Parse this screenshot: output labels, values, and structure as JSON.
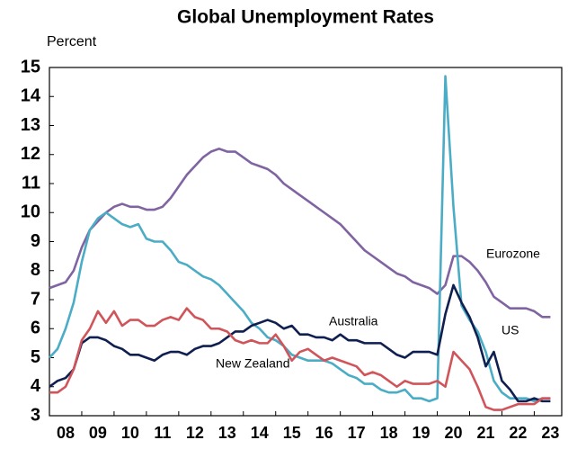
{
  "chart_data": {
    "type": "line",
    "title": "Global Unemployment Rates",
    "y_label": "Percent",
    "x": [
      2008,
      2008.25,
      2008.5,
      2008.75,
      2009,
      2009.25,
      2009.5,
      2009.75,
      2010,
      2010.25,
      2010.5,
      2010.75,
      2011,
      2011.25,
      2011.5,
      2011.75,
      2012,
      2012.25,
      2012.5,
      2012.75,
      2013,
      2013.25,
      2013.5,
      2013.75,
      2014,
      2014.25,
      2014.5,
      2014.75,
      2015,
      2015.25,
      2015.5,
      2015.75,
      2016,
      2016.25,
      2016.5,
      2016.75,
      2017,
      2017.25,
      2017.5,
      2017.75,
      2018,
      2018.25,
      2018.5,
      2018.75,
      2019,
      2019.25,
      2019.5,
      2019.75,
      2020,
      2020.25,
      2020.5,
      2020.75,
      2021,
      2021.25,
      2021.5,
      2021.75,
      2022,
      2022.25,
      2022.5,
      2022.75,
      2023,
      2023.25,
      2023.5
    ],
    "series": [
      {
        "name": "Eurozone",
        "color": "#8064a2",
        "values": [
          7.4,
          7.5,
          7.6,
          8.0,
          8.8,
          9.4,
          9.7,
          10.0,
          10.2,
          10.3,
          10.2,
          10.2,
          10.1,
          10.1,
          10.2,
          10.5,
          10.9,
          11.3,
          11.6,
          11.9,
          12.1,
          12.2,
          12.1,
          12.1,
          11.9,
          11.7,
          11.6,
          11.5,
          11.3,
          11.0,
          10.8,
          10.6,
          10.4,
          10.2,
          10.0,
          9.8,
          9.6,
          9.3,
          9.0,
          8.7,
          8.5,
          8.3,
          8.1,
          7.9,
          7.8,
          7.6,
          7.5,
          7.4,
          7.2,
          7.5,
          8.5,
          8.5,
          8.3,
          8.0,
          7.6,
          7.1,
          6.9,
          6.7,
          6.7,
          6.7,
          6.6,
          6.4,
          6.4
        ]
      },
      {
        "name": "US",
        "color": "#4bacc6",
        "values": [
          5.0,
          5.3,
          6.0,
          6.9,
          8.3,
          9.4,
          9.8,
          10.0,
          9.8,
          9.6,
          9.5,
          9.6,
          9.1,
          9.0,
          9.0,
          8.7,
          8.3,
          8.2,
          8.0,
          7.8,
          7.7,
          7.5,
          7.2,
          6.9,
          6.6,
          6.2,
          6.0,
          5.7,
          5.6,
          5.4,
          5.1,
          5.0,
          4.9,
          4.9,
          4.9,
          4.8,
          4.6,
          4.4,
          4.3,
          4.1,
          4.1,
          3.9,
          3.8,
          3.8,
          3.9,
          3.6,
          3.6,
          3.5,
          3.6,
          14.7,
          10.2,
          6.8,
          6.3,
          5.9,
          5.2,
          4.2,
          3.8,
          3.6,
          3.6,
          3.6,
          3.5,
          3.6,
          3.6
        ]
      },
      {
        "name": "Australia",
        "color": "#0f1f4f",
        "values": [
          4.0,
          4.2,
          4.3,
          4.6,
          5.5,
          5.7,
          5.7,
          5.6,
          5.4,
          5.3,
          5.1,
          5.1,
          5.0,
          4.9,
          5.1,
          5.2,
          5.2,
          5.1,
          5.3,
          5.4,
          5.4,
          5.5,
          5.7,
          5.9,
          5.9,
          6.1,
          6.2,
          6.3,
          6.2,
          6.0,
          6.1,
          5.8,
          5.8,
          5.7,
          5.7,
          5.6,
          5.8,
          5.6,
          5.6,
          5.5,
          5.5,
          5.5,
          5.3,
          5.1,
          5.0,
          5.2,
          5.2,
          5.2,
          5.1,
          6.5,
          7.5,
          6.9,
          6.4,
          5.7,
          4.7,
          5.2,
          4.2,
          3.9,
          3.5,
          3.5,
          3.6,
          3.5,
          3.5
        ]
      },
      {
        "name": "New Zealand",
        "color": "#d0555b",
        "values": [
          3.8,
          3.8,
          4.0,
          4.6,
          5.6,
          6.0,
          6.6,
          6.2,
          6.6,
          6.1,
          6.3,
          6.3,
          6.1,
          6.1,
          6.3,
          6.4,
          6.3,
          6.7,
          6.4,
          6.3,
          6.0,
          6.0,
          5.9,
          5.6,
          5.5,
          5.6,
          5.5,
          5.5,
          5.8,
          5.4,
          4.9,
          5.2,
          5.3,
          5.1,
          4.9,
          5.0,
          4.9,
          4.8,
          4.7,
          4.4,
          4.5,
          4.4,
          4.2,
          4.0,
          4.2,
          4.1,
          4.1,
          4.1,
          4.2,
          4.0,
          5.2,
          4.9,
          4.6,
          4.0,
          3.3,
          3.2,
          3.2,
          3.3,
          3.4,
          3.4,
          3.4,
          3.6,
          3.6
        ]
      }
    ],
    "xlim": [
      2008,
      2023.85
    ],
    "xticks": [
      {
        "value": 2008.5,
        "label": "08"
      },
      {
        "value": 2009.5,
        "label": "09"
      },
      {
        "value": 2010.5,
        "label": "10"
      },
      {
        "value": 2011.5,
        "label": "11"
      },
      {
        "value": 2012.5,
        "label": "12"
      },
      {
        "value": 2013.5,
        "label": "13"
      },
      {
        "value": 2014.5,
        "label": "14"
      },
      {
        "value": 2015.5,
        "label": "15"
      },
      {
        "value": 2016.5,
        "label": "16"
      },
      {
        "value": 2017.5,
        "label": "17"
      },
      {
        "value": 2018.5,
        "label": "18"
      },
      {
        "value": 2019.5,
        "label": "19"
      },
      {
        "value": 2020.5,
        "label": "20"
      },
      {
        "value": 2021.5,
        "label": "21"
      },
      {
        "value": 2022.5,
        "label": "22"
      },
      {
        "value": 2023.5,
        "label": "23"
      }
    ],
    "ylim": [
      3,
      15
    ],
    "yticks": [
      3,
      4,
      5,
      6,
      7,
      8,
      9,
      10,
      11,
      12,
      13,
      14,
      15
    ]
  }
}
